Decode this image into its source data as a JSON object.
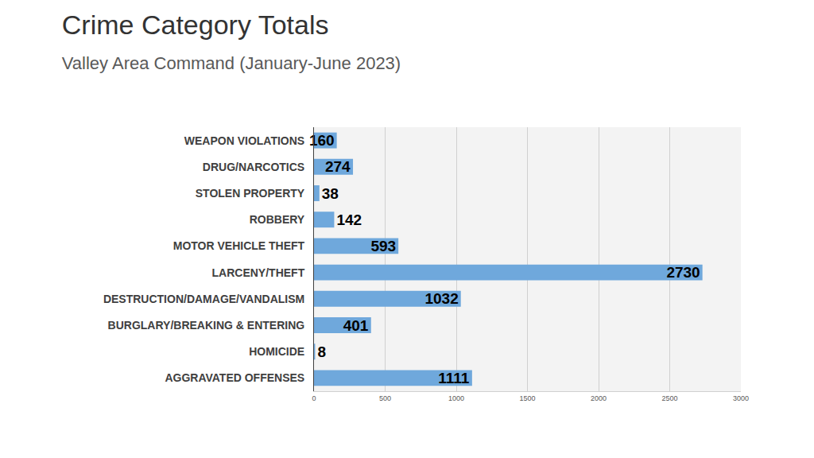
{
  "chart_data": {
    "type": "bar",
    "orientation": "horizontal",
    "title": "Crime Category Totals",
    "subtitle": "Valley Area Command (January-June 2023)",
    "categories": [
      "WEAPON VIOLATIONS",
      "DRUG/NARCOTICS",
      "STOLEN PROPERTY",
      "ROBBERY",
      "MOTOR VEHICLE THEFT",
      "LARCENY/THEFT",
      "DESTRUCTION/DAMAGE/VANDALISM",
      "BURGLARY/BREAKING & ENTERING",
      "HOMICIDE",
      "AGGRAVATED OFFENSES"
    ],
    "values": [
      160,
      274,
      38,
      142,
      593,
      2730,
      1032,
      401,
      8,
      1111
    ],
    "color": "#6fa8dc",
    "xlim": [
      0,
      3000
    ],
    "xticks": [
      0,
      500,
      1000,
      1500,
      2000,
      2500,
      3000
    ],
    "grid": true,
    "data_labels": true
  }
}
